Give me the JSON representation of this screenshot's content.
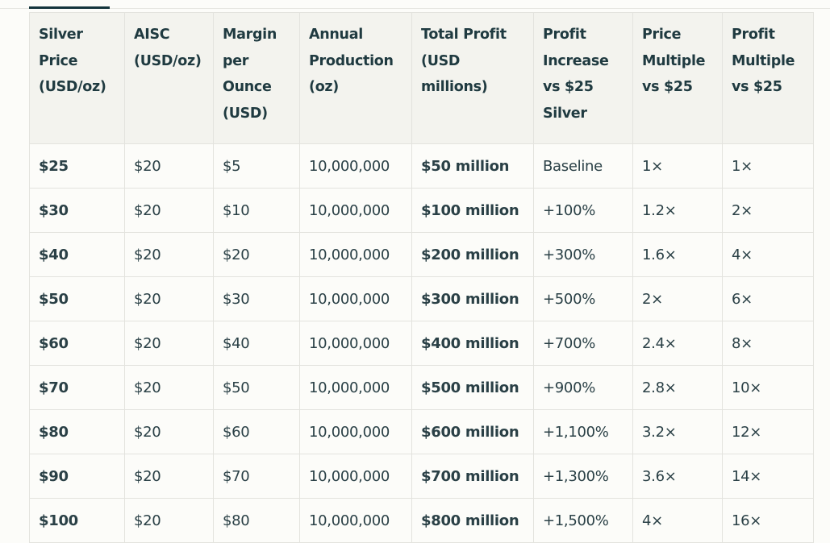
{
  "table": {
    "headers": [
      "Silver Price (USD/oz)",
      "AISC (USD/oz)",
      "Margin per Ounce (USD)",
      "Annual Production (oz)",
      "Total Profit (USD millions)",
      "Profit Increase vs $25 Silver",
      "Price Multiple vs $25",
      "Profit Multiple vs $25"
    ],
    "rows": [
      [
        "$25",
        "$20",
        "$5",
        "10,000,000",
        "$50 million",
        "Baseline",
        "1×",
        "1×"
      ],
      [
        "$30",
        "$20",
        "$10",
        "10,000,000",
        "$100 million",
        "+100%",
        "1.2×",
        "2×"
      ],
      [
        "$40",
        "$20",
        "$20",
        "10,000,000",
        "$200 million",
        "+300%",
        "1.6×",
        "4×"
      ],
      [
        "$50",
        "$20",
        "$30",
        "10,000,000",
        "$300 million",
        "+500%",
        "2×",
        "6×"
      ],
      [
        "$60",
        "$20",
        "$40",
        "10,000,000",
        "$400 million",
        "+700%",
        "2.4×",
        "8×"
      ],
      [
        "$70",
        "$20",
        "$50",
        "10,000,000",
        "$500 million",
        "+900%",
        "2.8×",
        "10×"
      ],
      [
        "$80",
        "$20",
        "$60",
        "10,000,000",
        "$600 million",
        "+1,100%",
        "3.2×",
        "12×"
      ],
      [
        "$90",
        "$20",
        "$70",
        "10,000,000",
        "$700 million",
        "+1,300%",
        "3.6×",
        "14×"
      ],
      [
        "$100",
        "$20",
        "$80",
        "10,000,000",
        "$800 million",
        "+1,500%",
        "4×",
        "16×"
      ]
    ]
  }
}
